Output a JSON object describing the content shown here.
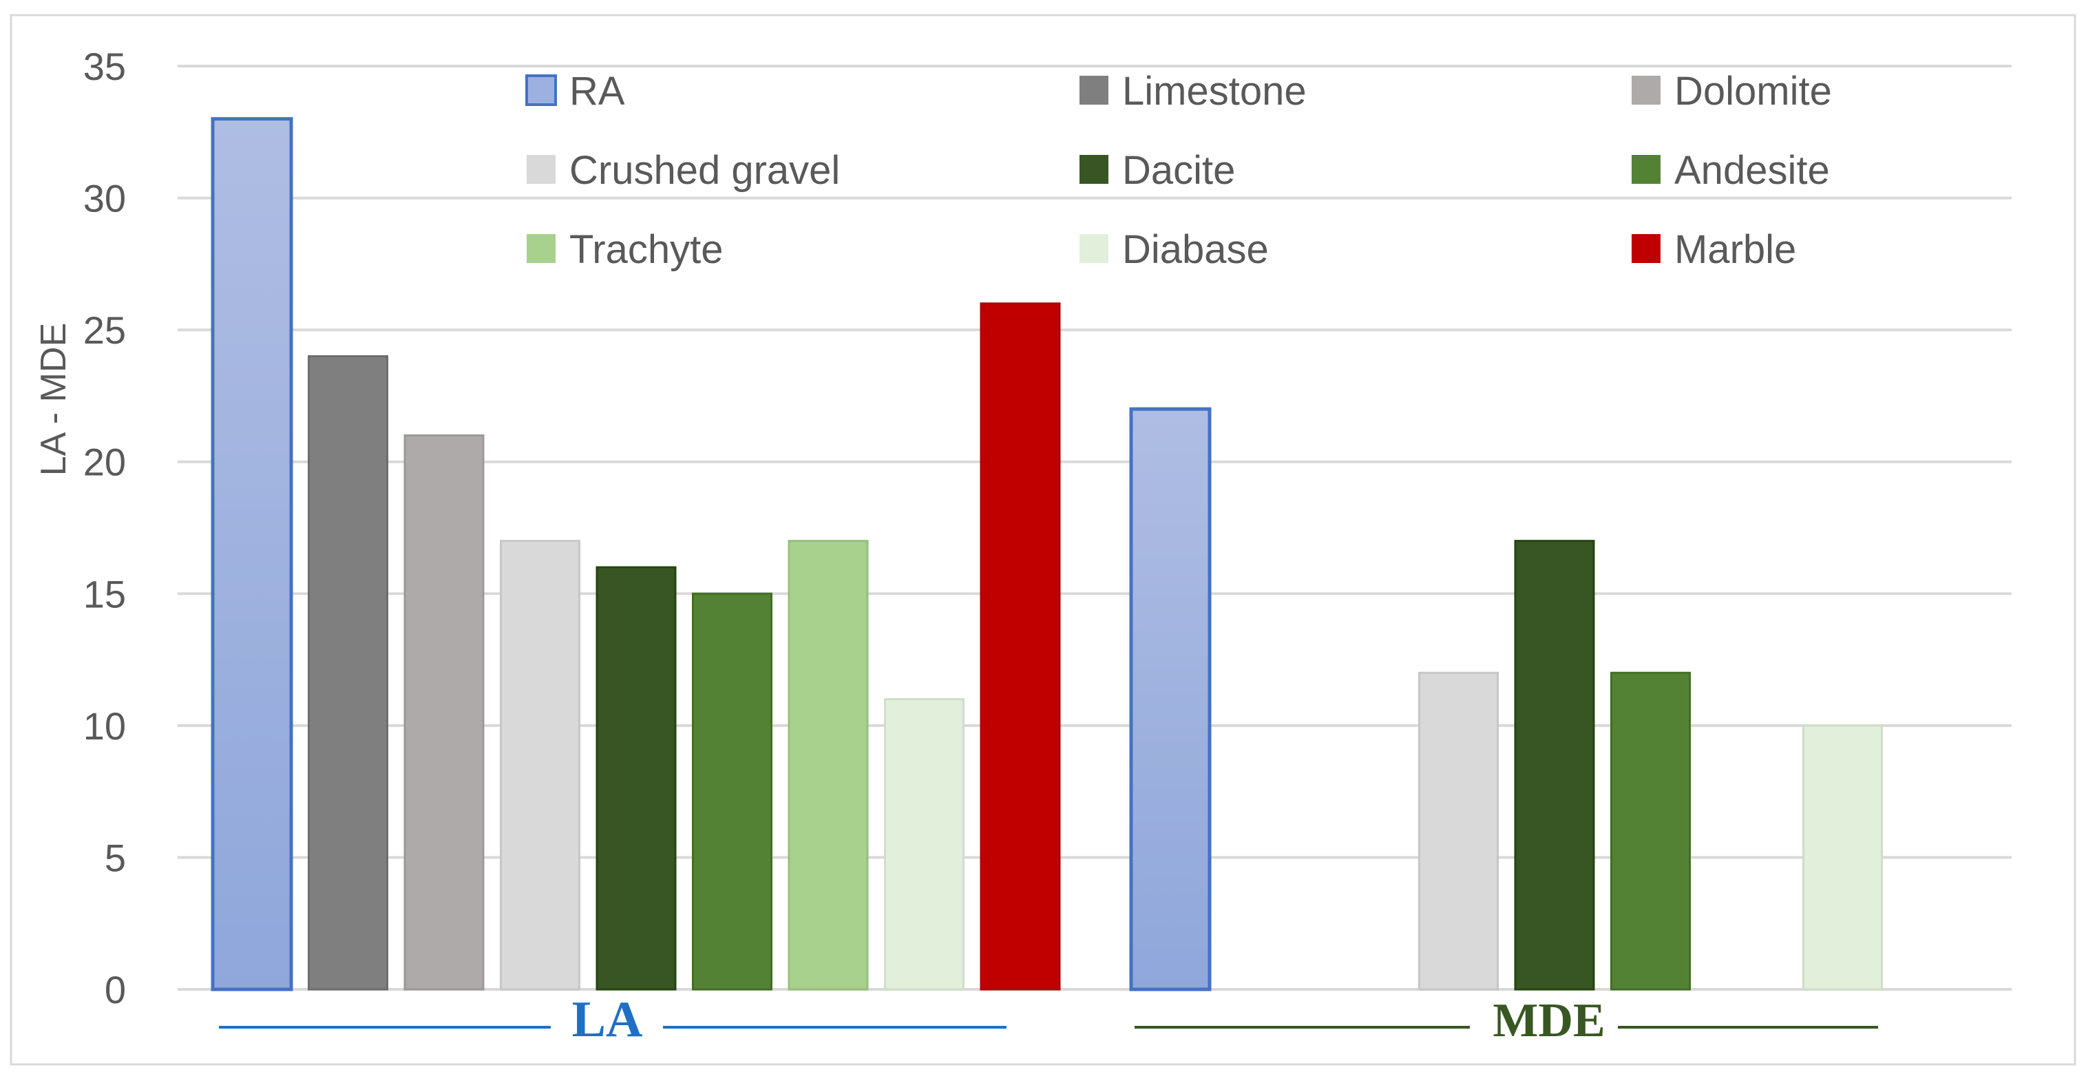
{
  "chart_data": {
    "type": "bar",
    "title": "",
    "xlabel": "",
    "ylabel": "LA - MDE",
    "ylim": [
      0,
      35
    ],
    "yticks": [
      0,
      5,
      10,
      15,
      20,
      25,
      30,
      35
    ],
    "grid": true,
    "legend_position": "top",
    "categories": [
      "LA",
      "MDE"
    ],
    "category_labels": [
      {
        "text": "LA",
        "color": "#1F6FC5"
      },
      {
        "text": "MDE",
        "color": "#385723"
      }
    ],
    "series": [
      {
        "name": "RA",
        "color": "#8FA7DB",
        "values": [
          33,
          22
        ]
      },
      {
        "name": "Limestone",
        "color": "#7F7F7F",
        "values": [
          24,
          null
        ]
      },
      {
        "name": "Dolomite",
        "color": "#AEAAAA",
        "values": [
          21,
          null
        ]
      },
      {
        "name": "Crushed gravel",
        "color": "#D9D9D9",
        "values": [
          17,
          12
        ]
      },
      {
        "name": "Dacite",
        "color": "#375623",
        "values": [
          16,
          17
        ]
      },
      {
        "name": "Andesite",
        "color": "#548235",
        "values": [
          15,
          12
        ]
      },
      {
        "name": "Trachyte",
        "color": "#A9D18E",
        "values": [
          17,
          null
        ]
      },
      {
        "name": "Diabase",
        "color": "#E2EFDA",
        "values": [
          11,
          10
        ]
      },
      {
        "name": "Marble",
        "color": "#C00000",
        "values": [
          26,
          null
        ]
      }
    ]
  }
}
